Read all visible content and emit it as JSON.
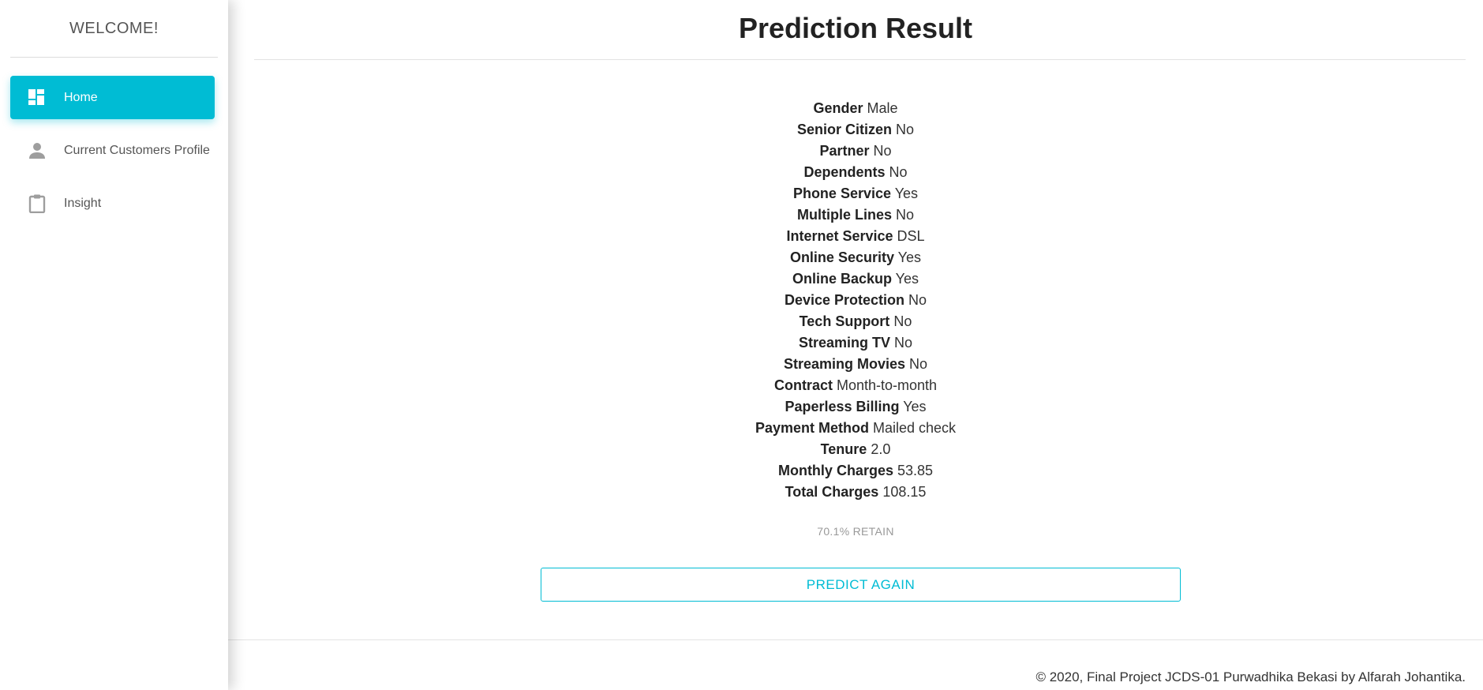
{
  "sidebar": {
    "title": "WELCOME!",
    "items": [
      {
        "label": "Home",
        "icon": "dashboard-icon",
        "active": true
      },
      {
        "label": "Current Customers Profile",
        "icon": "person-icon",
        "active": false
      },
      {
        "label": "Insight",
        "icon": "clipboard-icon",
        "active": false
      }
    ]
  },
  "main": {
    "title": "Prediction Result",
    "fields": [
      {
        "label": "Gender",
        "value": "Male"
      },
      {
        "label": "Senior Citizen",
        "value": "No"
      },
      {
        "label": "Partner",
        "value": "No"
      },
      {
        "label": "Dependents",
        "value": "No"
      },
      {
        "label": "Phone Service",
        "value": "Yes"
      },
      {
        "label": "Multiple Lines",
        "value": "No"
      },
      {
        "label": "Internet Service",
        "value": "DSL"
      },
      {
        "label": "Online Security",
        "value": "Yes"
      },
      {
        "label": "Online Backup",
        "value": "Yes"
      },
      {
        "label": "Device Protection",
        "value": "No"
      },
      {
        "label": "Tech Support",
        "value": "No"
      },
      {
        "label": "Streaming TV",
        "value": "No"
      },
      {
        "label": "Streaming Movies",
        "value": "No"
      },
      {
        "label": "Contract",
        "value": "Month-to-month"
      },
      {
        "label": "Paperless Billing",
        "value": "Yes"
      },
      {
        "label": "Payment Method",
        "value": "Mailed check"
      },
      {
        "label": "Tenure",
        "value": "2.0"
      },
      {
        "label": "Monthly Charges",
        "value": "53.85"
      },
      {
        "label": "Total Charges",
        "value": "108.15"
      }
    ],
    "result": "70.1% RETAIN",
    "button_label": "PREDICT AGAIN"
  },
  "footer": {
    "text": "© 2020, Final Project JCDS-01 Purwadhika Bekasi by Alfarah Johantika."
  },
  "colors": {
    "accent": "#00bcd4",
    "icon_gray": "#9e9e9e"
  }
}
